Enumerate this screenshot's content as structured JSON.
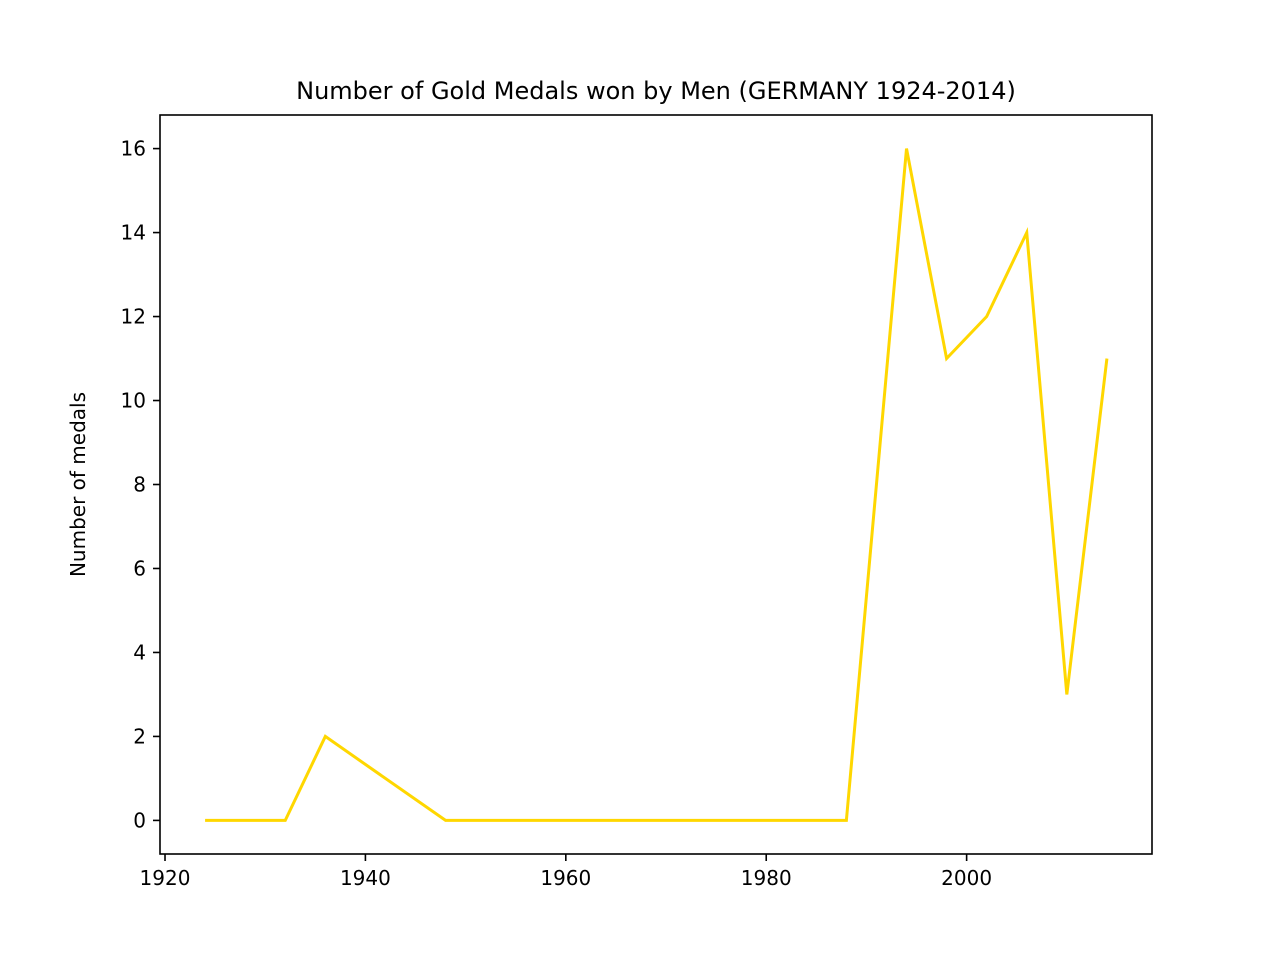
{
  "chart_data": {
    "type": "line",
    "title": "Number of Gold Medals won by Men (GERMANY 1924-2014)",
    "xlabel": "",
    "ylabel": "Number of medals",
    "xlim": [
      1919.5,
      2018.5
    ],
    "ylim": [
      -0.8,
      16.8
    ],
    "xticks": [
      1920,
      1940,
      1960,
      1980,
      2000
    ],
    "yticks": [
      0,
      2,
      4,
      6,
      8,
      10,
      12,
      14,
      16
    ],
    "grid": false,
    "series": [
      {
        "color": "#FFD700",
        "x": [
          1924,
          1928,
          1932,
          1936,
          1948,
          1952,
          1956,
          1960,
          1964,
          1968,
          1972,
          1976,
          1980,
          1984,
          1988,
          1994,
          1998,
          2002,
          2006,
          2010,
          2014
        ],
        "y": [
          0,
          0,
          0,
          2,
          0,
          0,
          0,
          0,
          0,
          0,
          0,
          0,
          0,
          0,
          0,
          16,
          11,
          12,
          14,
          3,
          11
        ]
      }
    ]
  }
}
